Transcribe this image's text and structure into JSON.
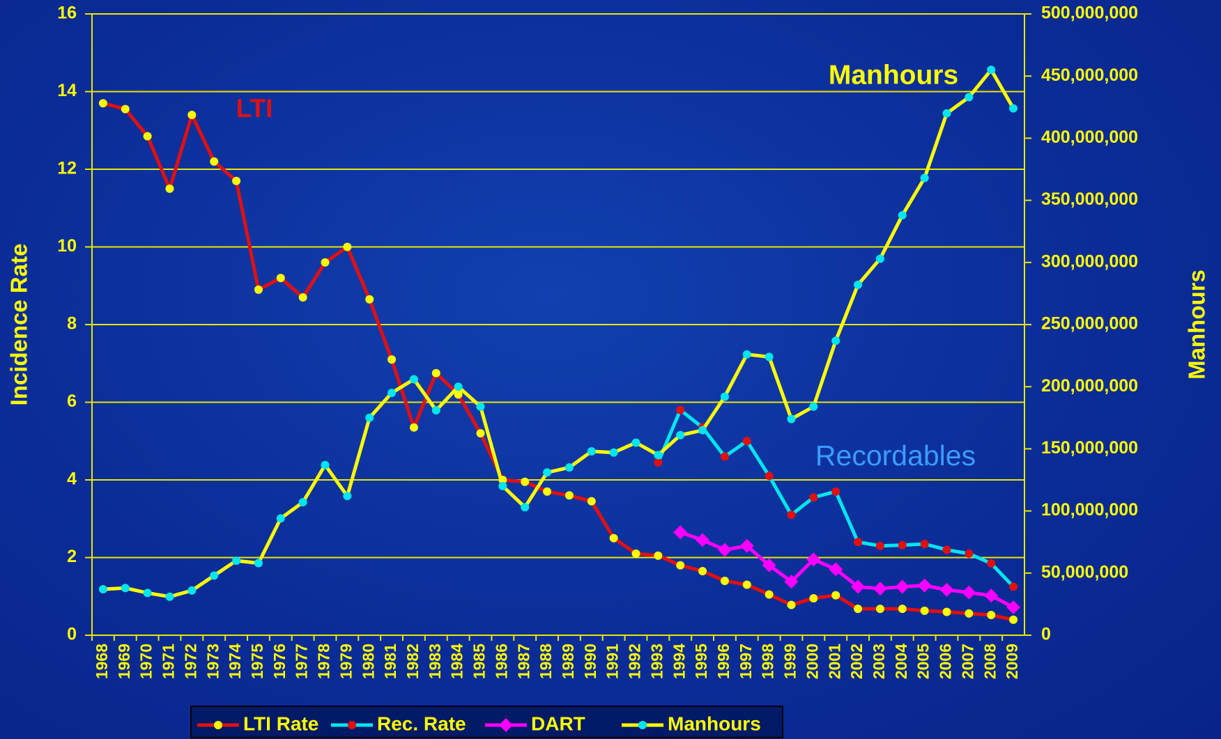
{
  "chart_data": {
    "type": "line",
    "categories": [
      "1968",
      "1969",
      "1970",
      "1971",
      "1972",
      "1973",
      "1974",
      "1975",
      "1976",
      "1977",
      "1978",
      "1979",
      "1980",
      "1981",
      "1982",
      "1983",
      "1984",
      "1985",
      "1986",
      "1987",
      "1988",
      "1989",
      "1990",
      "1991",
      "1992",
      "1993",
      "1994",
      "1995",
      "1996",
      "1997",
      "1998",
      "1999",
      "2000",
      "2001",
      "2002",
      "2003",
      "2004",
      "2005",
      "2006",
      "2007",
      "2008",
      "2009"
    ],
    "y_label": "Incidence Rate",
    "y2_label": "Manhours",
    "ylim": [
      0,
      16
    ],
    "yticks": [
      0,
      2,
      4,
      6,
      8,
      10,
      12,
      14,
      16
    ],
    "y2lim": [
      0,
      500000000
    ],
    "y2ticks": [
      0,
      {
        "value": 50000000,
        "label": "50,000,000"
      },
      {
        "value": 100000000,
        "label": "100,000,000"
      },
      {
        "value": 150000000,
        "label": "150,000,000"
      },
      {
        "value": 200000000,
        "label": "200,000,000"
      },
      {
        "value": 250000000,
        "label": "250,000,000"
      },
      {
        "value": 300000000,
        "label": "300,000,000"
      },
      {
        "value": 350000000,
        "label": "350,000,000"
      },
      {
        "value": 400000000,
        "label": "400,000,000"
      },
      {
        "value": 450000000,
        "label": "450,000,000"
      },
      {
        "value": 500000000,
        "label": "500,000,000"
      }
    ],
    "grid": true,
    "legend": "bottom",
    "annotations": [
      {
        "text": "LTI",
        "color": "#e01010"
      },
      {
        "text": "Manhours",
        "color": "#ffff00"
      },
      {
        "text": "Recordables",
        "color": "#3a9cff"
      }
    ],
    "series": [
      {
        "name": "LTI Rate",
        "color": "#e01010",
        "marker": "circle",
        "marker_color": "#ffff00",
        "values": [
          13.7,
          13.55,
          12.85,
          11.5,
          13.4,
          12.2,
          11.7,
          8.9,
          9.2,
          8.7,
          9.6,
          10.0,
          8.65,
          7.1,
          5.35,
          6.75,
          6.2,
          5.2,
          4.0,
          3.95,
          3.7,
          3.6,
          3.45,
          2.5,
          2.1,
          2.05,
          1.8,
          1.65,
          1.4,
          1.3,
          1.05,
          0.78,
          0.95,
          1.03,
          0.68,
          0.68,
          0.68,
          0.63,
          0.6,
          0.56,
          0.52,
          0.4
        ]
      },
      {
        "name": "Rec. Rate",
        "color": "#00e5f0",
        "marker": "circle",
        "marker_color": "#e01010",
        "values": [
          null,
          null,
          null,
          null,
          null,
          null,
          null,
          null,
          null,
          null,
          null,
          null,
          null,
          null,
          null,
          null,
          null,
          null,
          null,
          null,
          null,
          null,
          null,
          null,
          null,
          4.45,
          5.8,
          5.35,
          4.6,
          5.0,
          4.1,
          3.1,
          3.55,
          3.7,
          2.4,
          2.3,
          2.32,
          2.35,
          2.2,
          2.1,
          1.85,
          1.25
        ]
      },
      {
        "name": "DART",
        "color": "#ff00ff",
        "marker": "diamond",
        "marker_color": "#ff00ff",
        "values": [
          null,
          null,
          null,
          null,
          null,
          null,
          null,
          null,
          null,
          null,
          null,
          null,
          null,
          null,
          null,
          null,
          null,
          null,
          null,
          null,
          null,
          null,
          null,
          null,
          null,
          null,
          2.65,
          2.45,
          2.2,
          2.3,
          1.8,
          1.38,
          1.95,
          1.7,
          1.25,
          1.2,
          1.25,
          1.28,
          1.17,
          1.1,
          1.02,
          0.72
        ]
      },
      {
        "name": "Manhours",
        "color": "#ffff00",
        "marker": "circle",
        "marker_color": "#00e5f0",
        "axis": "y2",
        "values": [
          37000000,
          38000000,
          34000000,
          31000000,
          36000000,
          48000000,
          60000000,
          58000000,
          94000000,
          107000000,
          137000000,
          112000000,
          175000000,
          195000000,
          206000000,
          181000000,
          200000000,
          184000000,
          120000000,
          103000000,
          131000000,
          135000000,
          148000000,
          147000000,
          155000000,
          145000000,
          161000000,
          165000000,
          192000000,
          226000000,
          224000000,
          174000000,
          184000000,
          237000000,
          282000000,
          303000000,
          338000000,
          368000000,
          420000000,
          433000000,
          455000000,
          424000000
        ]
      }
    ]
  }
}
